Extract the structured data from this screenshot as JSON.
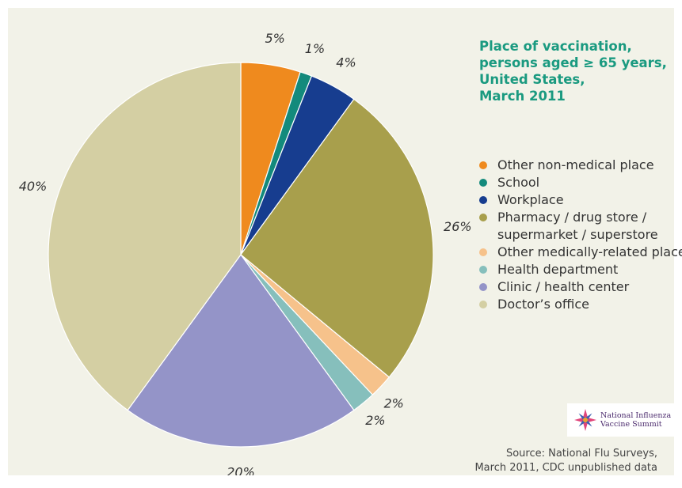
{
  "title_lines": [
    "Place of vaccination,",
    "persons aged ≥ 65 years,",
    "United States,",
    "March 2011"
  ],
  "legend": [
    {
      "label": "Other non-medical place",
      "color": "#ef8a1e"
    },
    {
      "label": "School",
      "color": "#138a7c"
    },
    {
      "label": "Workplace",
      "color": "#173d8f"
    },
    {
      "label": "Pharmacy / drug store / supermarket / superstore",
      "color": "#a89f4c"
    },
    {
      "label": "Other medically-related place",
      "color": "#f6c28b"
    },
    {
      "label": "Health department",
      "color": "#86bfbc"
    },
    {
      "label": "Clinic / health center",
      "color": "#9494c8"
    },
    {
      "label": "Doctor’s office",
      "color": "#d4cfa3"
    }
  ],
  "logo": {
    "line1": "National Influenza",
    "line2": "Vaccine Summit"
  },
  "source": {
    "line1": "Source:  National Flu Surveys,",
    "line2": "March 2011, CDC unpublished data"
  },
  "chart_data": {
    "type": "pie",
    "start": "12 o'clock, clockwise",
    "slices": [
      {
        "label": "Other non-medical place",
        "value": 5,
        "display": "5%",
        "color": "#ef8a1e"
      },
      {
        "label": "School",
        "value": 1,
        "display": "1%",
        "color": "#138a7c"
      },
      {
        "label": "Workplace",
        "value": 4,
        "display": "4%",
        "color": "#173d8f"
      },
      {
        "label": "Pharmacy / drug store / supermarket / superstore",
        "value": 26,
        "display": "26%",
        "color": "#a89f4c"
      },
      {
        "label": "Other medically-related place",
        "value": 2,
        "display": "2%",
        "color": "#f6c28b"
      },
      {
        "label": "Health department",
        "value": 2,
        "display": "2%",
        "color": "#86bfbc"
      },
      {
        "label": "Clinic / health center",
        "value": 20,
        "display": "20%",
        "color": "#9494c8"
      },
      {
        "label": "Doctor’s office",
        "value": 40,
        "display": "40%",
        "color": "#d4cfa3"
      }
    ]
  }
}
